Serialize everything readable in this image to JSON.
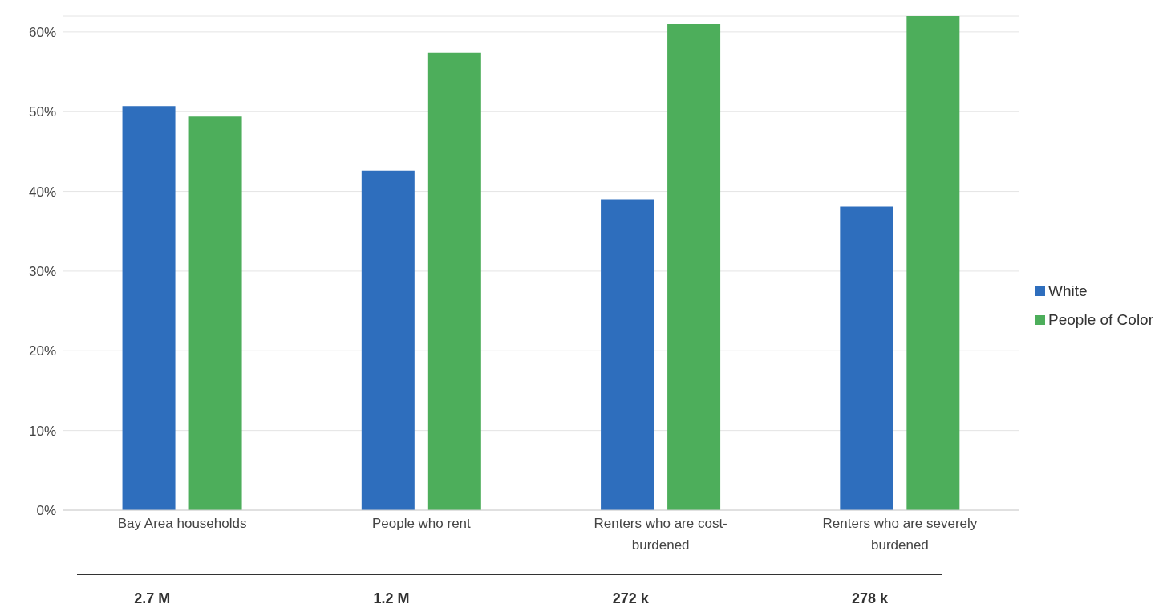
{
  "chart_data": {
    "type": "bar",
    "categories": [
      "Bay Area households",
      "People who rent",
      "Renters who are cost-burdened",
      "Renters who are severely burdened"
    ],
    "series": [
      {
        "name": "White",
        "color": "#2e6ebd",
        "values": [
          50.7,
          42.6,
          39.0,
          38.1
        ]
      },
      {
        "name": "People of Color",
        "color": "#4dae5b",
        "values": [
          49.4,
          57.4,
          61.0,
          62
        ]
      }
    ],
    "ylim": [
      0,
      62
    ],
    "yticks": [
      {
        "value": 0,
        "label": "0%"
      },
      {
        "value": 10,
        "label": "10%"
      },
      {
        "value": 20,
        "label": "20%"
      },
      {
        "value": 30,
        "label": "30%"
      },
      {
        "value": 40,
        "label": "40%"
      },
      {
        "value": 50,
        "label": "50%"
      },
      {
        "value": 60,
        "label": "60%"
      }
    ],
    "grid": "y",
    "legend": "right",
    "annotations": [
      "2.7 M",
      "1.2 M",
      "272 k",
      "278 k"
    ]
  }
}
